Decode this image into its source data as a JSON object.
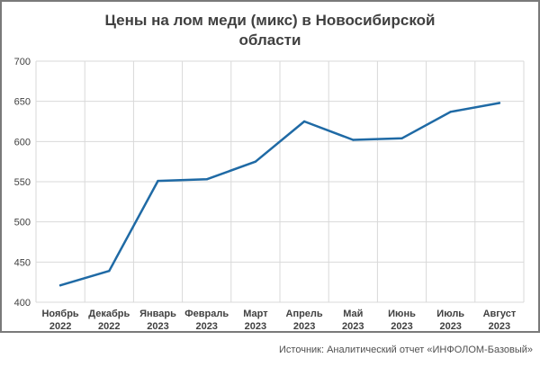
{
  "chart_data": {
    "type": "line",
    "title_lines": [
      "Цены на лом меди (микс) в Новосибирской",
      "области"
    ],
    "categories": [
      [
        "Ноябрь",
        "2022"
      ],
      [
        "Декабрь",
        "2022"
      ],
      [
        "Январь",
        "2023"
      ],
      [
        "Февраль",
        "2023"
      ],
      [
        "Март",
        "2023"
      ],
      [
        "Апрель",
        "2023"
      ],
      [
        "Май",
        "2023"
      ],
      [
        "Июнь",
        "2023"
      ],
      [
        "Июль",
        "2023"
      ],
      [
        "Август",
        "2023"
      ]
    ],
    "series": [
      {
        "values": [
          421,
          439,
          551,
          553,
          575,
          625,
          602,
          604,
          637,
          648
        ]
      }
    ],
    "ylim": [
      400,
      700
    ],
    "yticks": [
      400,
      450,
      500,
      550,
      600,
      650,
      700
    ],
    "grid": true,
    "line_color": "#1f6aa5",
    "grid_color": "#d9d9d9"
  },
  "source": "Источник: Аналитический отчет «ИНФОЛОМ-Базовый»"
}
